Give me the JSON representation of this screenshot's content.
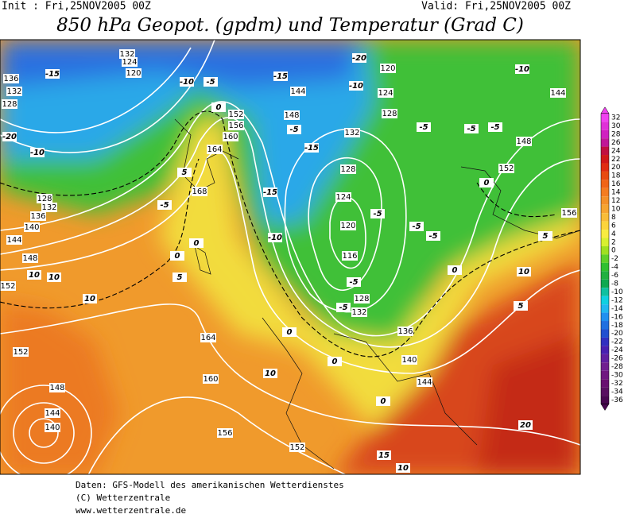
{
  "header": {
    "init": "Init : Fri,25NOV2005 00Z",
    "valid": "Valid: Fri,25NOV2005 00Z",
    "title": "850 hPa Geopot. (gpdm) und Temperatur (Grad C)"
  },
  "map": {
    "geopotential_labels": [
      132,
      124,
      120,
      136,
      132,
      128,
      144,
      148,
      152,
      156,
      160,
      164,
      168,
      132,
      128,
      124,
      120,
      116,
      128,
      132,
      136,
      140,
      144,
      120,
      124,
      128,
      148,
      152,
      156,
      144,
      164,
      160,
      156,
      152,
      152,
      148,
      144,
      140,
      152,
      148,
      144,
      140,
      136,
      128,
      132
    ],
    "temperature_labels": [
      -15,
      -10,
      -5,
      -15,
      -20,
      -20,
      -10,
      -10,
      -10,
      -5,
      -5,
      -5,
      -5,
      -15,
      -15,
      -10,
      -5,
      -5,
      -5,
      -5,
      -5,
      0,
      0,
      5,
      5,
      10,
      10,
      10,
      10,
      10,
      0,
      0,
      0,
      0,
      0,
      5,
      5,
      10,
      15,
      20,
      -5,
      0
    ]
  },
  "colorbar": {
    "ticks": [
      32,
      30,
      28,
      26,
      24,
      22,
      20,
      18,
      16,
      14,
      12,
      10,
      8,
      6,
      4,
      2,
      0,
      -2,
      -4,
      -6,
      -8,
      -10,
      -12,
      -14,
      -16,
      -18,
      -20,
      -22,
      -24,
      -26,
      -28,
      -30,
      -32,
      -34,
      -36
    ],
    "colors": [
      "#f040f0",
      "#e030d8",
      "#d020c0",
      "#c01898",
      "#c01040",
      "#d01818",
      "#e02c10",
      "#e84a10",
      "#f06418",
      "#f47c20",
      "#f49028",
      "#f6a430",
      "#f8bc38",
      "#fcd43c",
      "#f8ec40",
      "#d8f030",
      "#a0e020",
      "#60d028",
      "#30c030",
      "#20b040",
      "#10a850",
      "#10c0a0",
      "#10d0e0",
      "#20b8f0",
      "#2090f0",
      "#2070e0",
      "#2050d0",
      "#3030c0",
      "#4820b0",
      "#6020a0",
      "#702090",
      "#701880",
      "#681070",
      "#581060",
      "#480850"
    ]
  },
  "footer": [
    "Daten: GFS-Modell des amerikanischen Wetterdienstes",
    "(C) Wetterzentrale",
    "www.wetterzentrale.de"
  ]
}
